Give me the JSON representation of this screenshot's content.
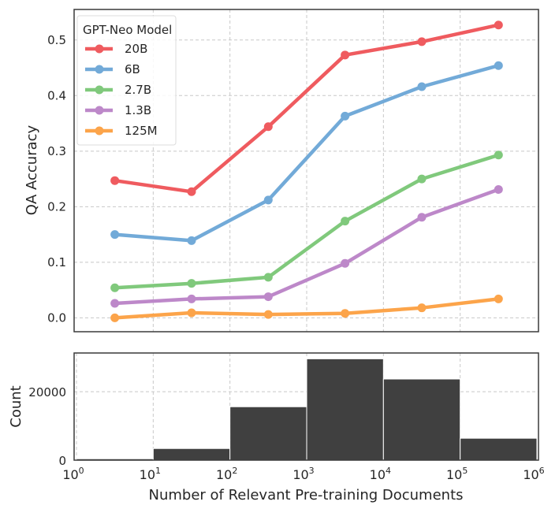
{
  "chart_data": [
    {
      "type": "line",
      "title": "",
      "xlabel": "",
      "ylabel": "QA Accuracy",
      "xscale": "log",
      "xlim": [
        1,
        1000000
      ],
      "ylim": [
        -0.025,
        0.555
      ],
      "yticks": [
        "0.0",
        "0.1",
        "0.2",
        "0.3",
        "0.4",
        "0.5"
      ],
      "ytick_values": [
        0.0,
        0.1,
        0.2,
        0.3,
        0.4,
        0.5
      ],
      "grid": true,
      "legend": {
        "title": "GPT-Neo Model",
        "placement": "top-left"
      },
      "x": [
        3.16,
        31.6,
        316,
        3160,
        31600,
        316000
      ],
      "series": [
        {
          "name": "20B",
          "color": "#ef5b5f",
          "values": [
            0.247,
            0.227,
            0.344,
            0.473,
            0.497,
            0.527
          ]
        },
        {
          "name": "6B",
          "color": "#72aad8",
          "values": [
            0.15,
            0.139,
            0.212,
            0.363,
            0.416,
            0.454
          ]
        },
        {
          "name": "2.7B",
          "color": "#80c97c",
          "values": [
            0.054,
            0.062,
            0.073,
            0.174,
            0.25,
            0.293
          ]
        },
        {
          "name": "1.3B",
          "color": "#bd88c9",
          "values": [
            0.026,
            0.034,
            0.038,
            0.098,
            0.181,
            0.231
          ]
        },
        {
          "name": "125M",
          "color": "#fca44a",
          "values": [
            0.0,
            0.009,
            0.006,
            0.008,
            0.018,
            0.034
          ]
        }
      ]
    },
    {
      "type": "bar",
      "title": "",
      "xlabel": "Number of Relevant Pre-training Documents",
      "ylabel": "Count",
      "xscale": "log",
      "xlim": [
        1,
        1000000
      ],
      "ylim": [
        0,
        31300
      ],
      "yticks": [
        "0",
        "20000"
      ],
      "ytick_values": [
        0,
        20000
      ],
      "xticks": [
        {
          "base": "10",
          "exp": "0"
        },
        {
          "base": "10",
          "exp": "1"
        },
        {
          "base": "10",
          "exp": "2"
        },
        {
          "base": "10",
          "exp": "3"
        },
        {
          "base": "10",
          "exp": "4"
        },
        {
          "base": "10",
          "exp": "5"
        },
        {
          "base": "10",
          "exp": "6"
        }
      ],
      "grid": true,
      "color": "#404040",
      "bin_edges": [
        1,
        10,
        100,
        1000,
        10000,
        100000,
        1000000
      ],
      "values": [
        400,
        3400,
        15600,
        29600,
        23700,
        6400
      ]
    }
  ]
}
